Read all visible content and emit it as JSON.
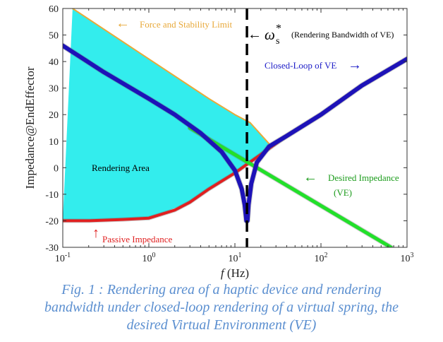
{
  "chart_data": {
    "type": "line",
    "xlabel_italic": "f",
    "xlabel_unit": "(Hz)",
    "ylabel": "Impedance@EndEffector",
    "xscale": "log",
    "xlim": [
      0.1,
      1000
    ],
    "ylim": [
      -30,
      60
    ],
    "x_ticks": [
      {
        "base": "10",
        "exp": "-1"
      },
      {
        "base": "10",
        "exp": "0"
      },
      {
        "base": "10",
        "exp": "1"
      },
      {
        "base": "10",
        "exp": "2"
      },
      {
        "base": "10",
        "exp": "3"
      }
    ],
    "y_ticks": [
      "60",
      "50",
      "40",
      "30",
      "20",
      "10",
      "0",
      "-10",
      "-20",
      "-30"
    ],
    "rendering_area": {
      "label": "Rendering Area",
      "color": "#33eded",
      "upper": [
        [
          0.13,
          60
        ],
        [
          1,
          41
        ],
        [
          5,
          26
        ],
        [
          10,
          20
        ],
        [
          15,
          17
        ],
        [
          25,
          9
        ]
      ],
      "lower": [
        [
          0.1,
          -20
        ],
        [
          1,
          -19
        ],
        [
          3,
          -13
        ],
        [
          5,
          -8
        ],
        [
          10,
          -2
        ],
        [
          20,
          5
        ],
        [
          25,
          9
        ]
      ]
    },
    "series": [
      {
        "name": "Force and Stability Limit",
        "color": "#e8a93a",
        "width": 2,
        "points": [
          [
            0.13,
            60
          ],
          [
            1,
            41
          ],
          [
            5,
            26
          ],
          [
            10,
            20
          ],
          [
            15,
            17
          ],
          [
            25,
            9
          ]
        ]
      },
      {
        "name": "Passive Impedance",
        "color": "#e02020",
        "width": 4,
        "points": [
          [
            0.1,
            -20
          ],
          [
            0.2,
            -20
          ],
          [
            0.5,
            -19.5
          ],
          [
            1,
            -19
          ],
          [
            2,
            -16
          ],
          [
            3,
            -13
          ],
          [
            5,
            -8
          ],
          [
            10,
            -2
          ],
          [
            20,
            5
          ],
          [
            40,
            12
          ],
          [
            100,
            20
          ],
          [
            300,
            31
          ],
          [
            1000,
            41
          ]
        ]
      },
      {
        "name": "Desired Impedance (VE)",
        "color": "#22e02a",
        "width": 5,
        "points": [
          [
            3,
            15
          ],
          [
            650,
            -30
          ]
        ]
      },
      {
        "name": "Closed-Loop of VE",
        "color": "#1d12b8",
        "width": 6,
        "points": [
          [
            0.1,
            46
          ],
          [
            0.3,
            36
          ],
          [
            1,
            26
          ],
          [
            2,
            20
          ],
          [
            4,
            13
          ],
          [
            7,
            6
          ],
          [
            10,
            -1
          ],
          [
            12,
            -8
          ],
          [
            13,
            -14
          ],
          [
            13.6,
            -20
          ],
          [
            14,
            -20
          ],
          [
            14.4,
            -14
          ],
          [
            15.5,
            -6
          ],
          [
            18,
            2
          ],
          [
            25,
            8
          ],
          [
            40,
            12
          ],
          [
            100,
            20
          ],
          [
            300,
            31
          ],
          [
            1000,
            41
          ]
        ]
      }
    ],
    "vline": {
      "x": 13.8,
      "label_symbol": "ω",
      "label_sub": "s",
      "label_sup": "*",
      "label_text": "(Rendering Bandwidth of VE)"
    },
    "annotations": [
      {
        "key": "force",
        "arrow": "←",
        "text": "Force and Stability Limit",
        "color": "#e8a93a"
      },
      {
        "key": "closed",
        "arrow": "→",
        "text": "Closed-Loop of VE",
        "color": "#2020c8"
      },
      {
        "key": "desired",
        "arrow": "←",
        "text": "Desired Impedance",
        "text2": "(VE)",
        "color": "#1c9c1c"
      },
      {
        "key": "passive",
        "arrow": "↑",
        "text": "Passive Impedance",
        "color": "#e02020"
      }
    ],
    "grid": false,
    "legend": "none"
  },
  "caption": {
    "lines": [
      "Fig. 1 : Rendering area of a haptic device and rendering",
      "bandwidth under closed-loop rendering of a virtual spring, the",
      "desired Virtual Environment (VE)"
    ]
  }
}
